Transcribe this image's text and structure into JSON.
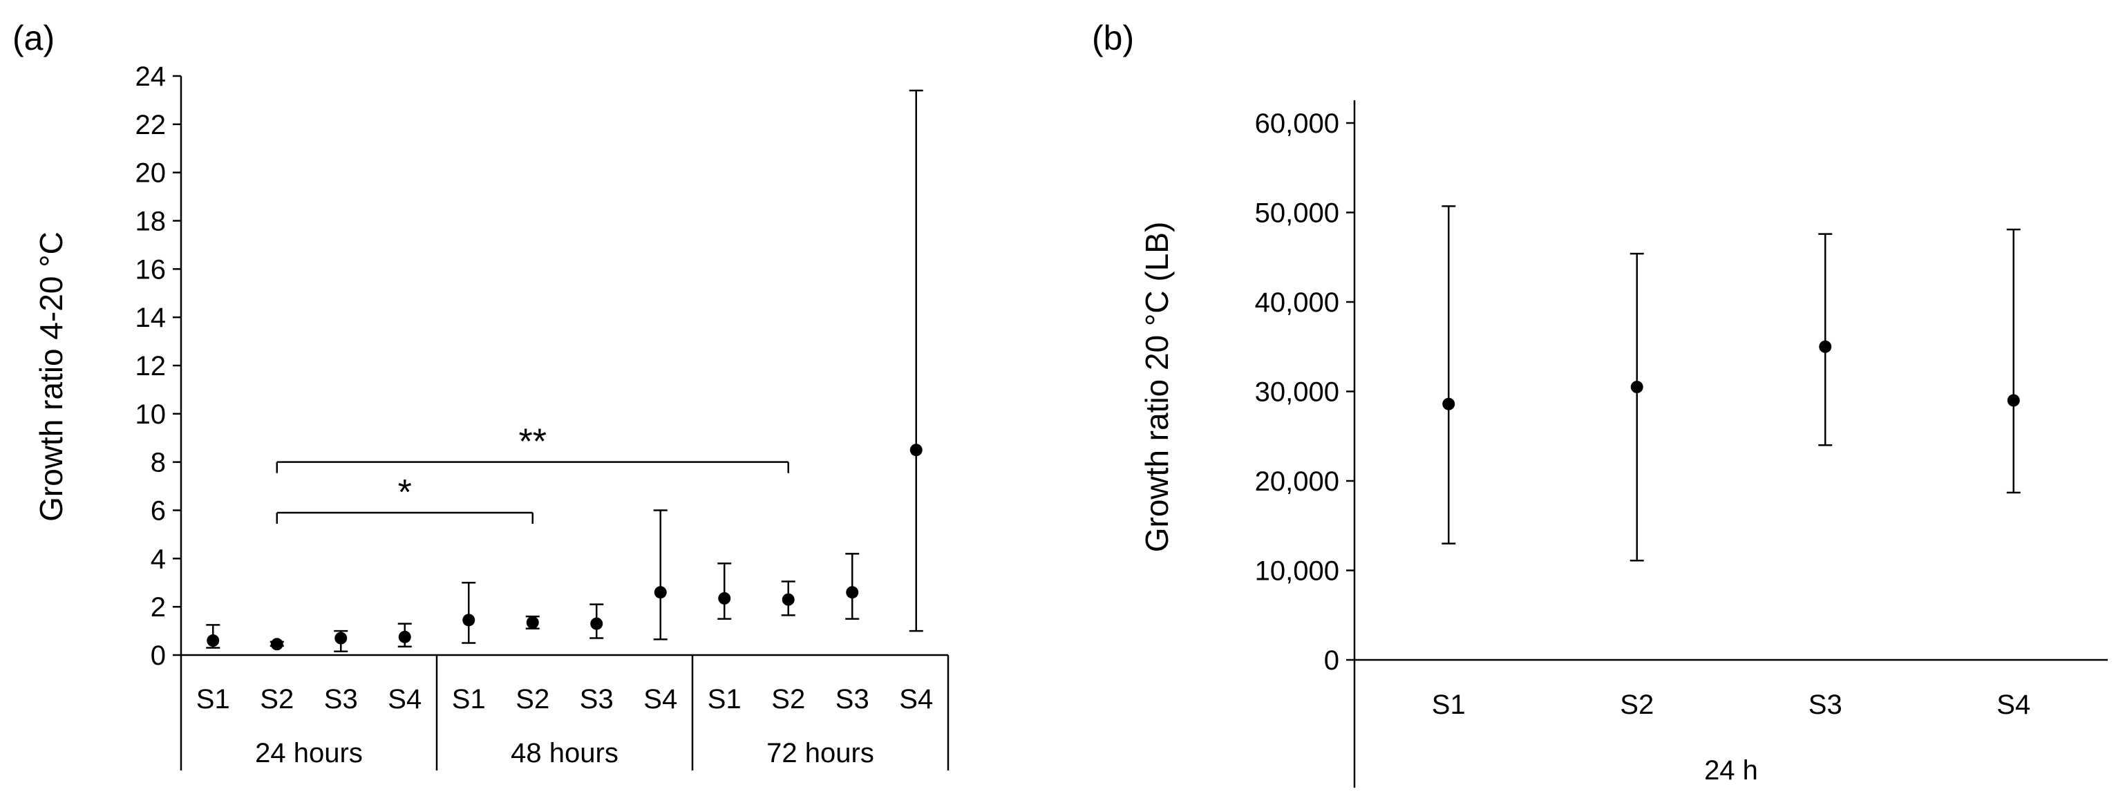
{
  "chart_data": [
    {
      "panel_label": "(a)",
      "type": "scatter",
      "ylabel": "Growth ratio 4-20 °C",
      "ylim": [
        0,
        24
      ],
      "yticks": [
        0,
        2,
        4,
        6,
        8,
        10,
        12,
        14,
        16,
        18,
        20,
        22,
        24
      ],
      "groups": [
        "24 hours",
        "48 hours",
        "72 hours"
      ],
      "categories": [
        "S1",
        "S2",
        "S3",
        "S4"
      ],
      "points": [
        {
          "group": "24 hours",
          "category": "S1",
          "y": 0.6,
          "low": 0.3,
          "high": 1.25
        },
        {
          "group": "24 hours",
          "category": "S2",
          "y": 0.45,
          "low": 0.38,
          "high": 0.55
        },
        {
          "group": "24 hours",
          "category": "S3",
          "y": 0.7,
          "low": 0.15,
          "high": 1.0
        },
        {
          "group": "24 hours",
          "category": "S4",
          "y": 0.75,
          "low": 0.35,
          "high": 1.3
        },
        {
          "group": "48 hours",
          "category": "S1",
          "y": 1.45,
          "low": 0.5,
          "high": 3.0
        },
        {
          "group": "48 hours",
          "category": "S2",
          "y": 1.35,
          "low": 1.1,
          "high": 1.6
        },
        {
          "group": "48 hours",
          "category": "S3",
          "y": 1.3,
          "low": 0.7,
          "high": 2.1
        },
        {
          "group": "48 hours",
          "category": "S4",
          "y": 2.6,
          "low": 0.65,
          "high": 6.0
        },
        {
          "group": "72 hours",
          "category": "S1",
          "y": 2.35,
          "low": 1.5,
          "high": 3.8
        },
        {
          "group": "72 hours",
          "category": "S2",
          "y": 2.3,
          "low": 1.65,
          "high": 3.05
        },
        {
          "group": "72 hours",
          "category": "S3",
          "y": 2.6,
          "low": 1.5,
          "high": 4.2
        },
        {
          "group": "72 hours",
          "category": "S4",
          "y": 8.5,
          "low": 1.0,
          "high": 23.4
        }
      ],
      "significance": [
        {
          "label": "*",
          "from": {
            "group": "24 hours",
            "category": "S2"
          },
          "to": {
            "group": "48 hours",
            "category": "S2"
          },
          "y": 5.9
        },
        {
          "label": "**",
          "from": {
            "group": "24 hours",
            "category": "S2"
          },
          "to": {
            "group": "72 hours",
            "category": "S2"
          },
          "y": 8.0
        }
      ]
    },
    {
      "panel_label": "(b)",
      "type": "scatter",
      "ylabel": "Growth ratio 20 °C (LB)",
      "ylim": [
        0,
        60000
      ],
      "yticks": [
        "0",
        "10,000",
        "20,000",
        "30,000",
        "40,000",
        "50,000",
        "60,000"
      ],
      "group": "24 h",
      "categories": [
        "S1",
        "S2",
        "S3",
        "S4"
      ],
      "points": [
        {
          "category": "S1",
          "y": 28600,
          "low": 13000,
          "high": 50700
        },
        {
          "category": "S2",
          "y": 30500,
          "low": 11100,
          "high": 45400
        },
        {
          "category": "S3",
          "y": 35000,
          "low": 24000,
          "high": 47600
        },
        {
          "category": "S4",
          "y": 29000,
          "low": 18700,
          "high": 48100
        }
      ]
    }
  ]
}
